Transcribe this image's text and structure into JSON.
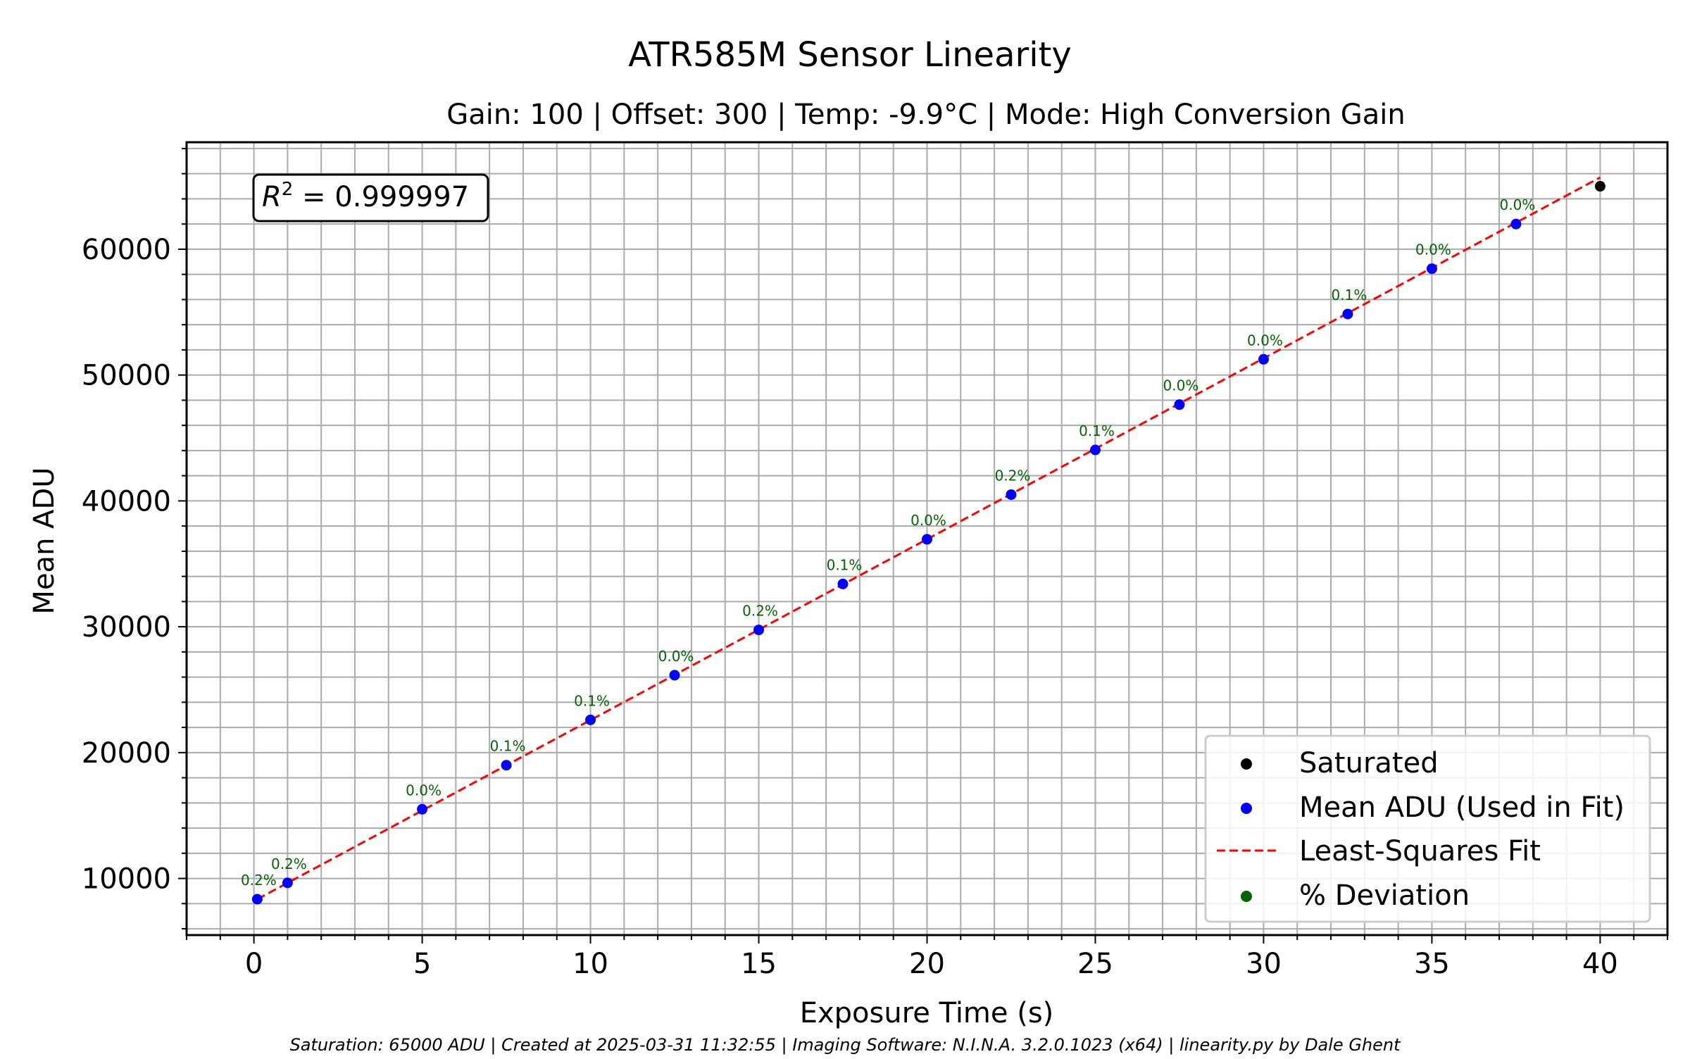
{
  "chart_data": {
    "type": "scatter",
    "title": "ATR585M Sensor Linearity",
    "subtitle": "Gain: 100 | Offset: 300 | Temp: -9.9°C | Mode: High Conversion Gain",
    "xlabel": "Exposure Time (s)",
    "ylabel": "Mean ADU",
    "xlim": [
      -2,
      42
    ],
    "ylim": [
      5500,
      68500
    ],
    "x_ticks": [
      0,
      5,
      10,
      15,
      20,
      25,
      30,
      35,
      40
    ],
    "y_ticks": [
      10000,
      20000,
      30000,
      40000,
      50000,
      60000
    ],
    "x_tick_labels": [
      "0",
      "5",
      "10",
      "15",
      "20",
      "25",
      "30",
      "35",
      "40"
    ],
    "y_tick_labels": [
      "10000",
      "20000",
      "30000",
      "40000",
      "50000",
      "60000"
    ],
    "x_minor_step": 1,
    "y_minor_step": 2000,
    "grid": true,
    "r_squared_label": "0.999997",
    "series": [
      {
        "name": "Saturated",
        "kind": "scatter",
        "color": "#000000",
        "points": [
          {
            "x": 40,
            "y": 65000
          }
        ]
      },
      {
        "name": "Mean ADU (Used in Fit)",
        "kind": "scatter",
        "color": "#0000ff",
        "points": [
          {
            "x": 0.1,
            "y": 8350,
            "deviation": "0.2%"
          },
          {
            "x": 1,
            "y": 9650,
            "deviation": "0.2%"
          },
          {
            "x": 5,
            "y": 15500,
            "deviation": "0.0%"
          },
          {
            "x": 7.5,
            "y": 19000,
            "deviation": "0.1%"
          },
          {
            "x": 10,
            "y": 22600,
            "deviation": "0.1%"
          },
          {
            "x": 12.5,
            "y": 26150,
            "deviation": "0.0%"
          },
          {
            "x": 15,
            "y": 29750,
            "deviation": "0.2%"
          },
          {
            "x": 17.5,
            "y": 33400,
            "deviation": "0.1%"
          },
          {
            "x": 20,
            "y": 36950,
            "deviation": "0.0%"
          },
          {
            "x": 22.5,
            "y": 40500,
            "deviation": "0.2%"
          },
          {
            "x": 25,
            "y": 44050,
            "deviation": "0.1%"
          },
          {
            "x": 27.5,
            "y": 47650,
            "deviation": "0.0%"
          },
          {
            "x": 30,
            "y": 51250,
            "deviation": "0.0%"
          },
          {
            "x": 32.5,
            "y": 54850,
            "deviation": "0.1%"
          },
          {
            "x": 35,
            "y": 58450,
            "deviation": "0.0%"
          },
          {
            "x": 37.5,
            "y": 62000,
            "deviation": "0.0%"
          }
        ]
      },
      {
        "name": "Least-Squares Fit",
        "kind": "line",
        "style": "dashed",
        "color": "#ff0000",
        "x": [
          0.1,
          40
        ],
        "y": [
          8350,
          65700
        ]
      },
      {
        "name": "% Deviation",
        "kind": "annotation",
        "color": "#006400"
      }
    ],
    "legend": {
      "position": "bottom-right",
      "entries": [
        "Saturated",
        "Mean ADU (Used in Fit)",
        "Least-Squares Fit",
        "% Deviation"
      ]
    },
    "footer": "Saturation: 65000 ADU | Created at 2025-03-31 11:32:55 | Imaging Software: N.I.N.A. 3.2.0.1023 (x64) | linearity.py by Dale Ghent"
  }
}
